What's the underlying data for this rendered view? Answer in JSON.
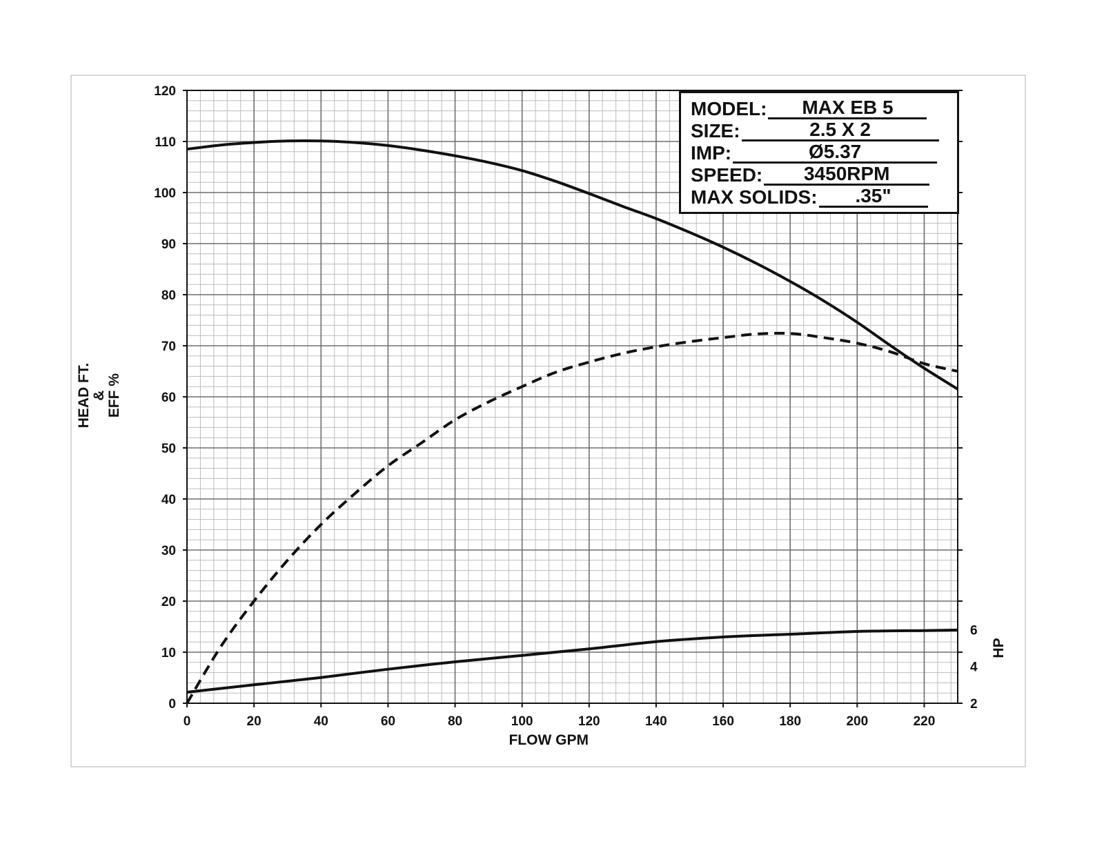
{
  "spec": {
    "rows": [
      {
        "key": "MODEL:",
        "value": "MAX EB 5"
      },
      {
        "key": "SIZE:",
        "value": "2.5 X 2"
      },
      {
        "key": "IMP:",
        "value": "Ø5.37"
      },
      {
        "key": "SPEED:",
        "value": "3450RPM"
      },
      {
        "key": "MAX SOLIDS:",
        "value": ".35\""
      }
    ]
  },
  "chart_data": {
    "type": "line",
    "title": "",
    "xlabel": "FLOW GPM",
    "ylabel": "HEAD FT. & EFF %",
    "ylabel_lines": [
      "HEAD FT.",
      "&",
      "EFF %"
    ],
    "y2label": "HP",
    "xlim": [
      0,
      230
    ],
    "ylim": [
      0,
      120
    ],
    "y2lim": [
      2,
      35.3
    ],
    "x_ticks": [
      0,
      20,
      40,
      60,
      80,
      100,
      120,
      140,
      160,
      180,
      200,
      220
    ],
    "y_ticks": [
      0,
      10,
      20,
      30,
      40,
      50,
      60,
      70,
      80,
      90,
      100,
      110,
      120
    ],
    "y2_ticks": [
      2,
      4,
      6
    ],
    "grid": true,
    "series": [
      {
        "style": "solid",
        "axis": "left",
        "x": [
          0,
          10,
          20,
          30,
          40,
          50,
          60,
          70,
          80,
          90,
          100,
          110,
          120,
          130,
          140,
          150,
          160,
          170,
          180,
          190,
          200,
          210,
          220,
          230
        ],
        "y": [
          108.5,
          109.3,
          109.8,
          110.1,
          110.1,
          109.8,
          109.2,
          108.3,
          107.2,
          105.9,
          104.3,
          102.2,
          99.8,
          97.3,
          94.9,
          92.2,
          89.3,
          86.1,
          82.6,
          78.8,
          74.6,
          70.0,
          65.6,
          61.5
        ],
        "color": "#111111"
      },
      {
        "style": "dashed",
        "axis": "left",
        "x": [
          0,
          10,
          20,
          30,
          40,
          50,
          60,
          70,
          80,
          90,
          100,
          110,
          120,
          130,
          140,
          150,
          160,
          170,
          180,
          190,
          200,
          210,
          220,
          230
        ],
        "y": [
          0,
          11.0,
          20.0,
          28.0,
          35.0,
          41.0,
          46.5,
          51.0,
          55.5,
          59.0,
          62.0,
          64.8,
          66.8,
          68.5,
          69.8,
          70.8,
          71.6,
          72.3,
          72.4,
          71.6,
          70.5,
          68.8,
          66.5,
          65.0
        ],
        "color": "#111111"
      },
      {
        "style": "solid",
        "axis": "right",
        "x": [
          0,
          20,
          40,
          60,
          80,
          100,
          120,
          140,
          160,
          180,
          200,
          220,
          230
        ],
        "y": [
          2.6,
          3.0,
          3.4,
          3.85,
          4.25,
          4.6,
          4.95,
          5.35,
          5.6,
          5.75,
          5.9,
          5.95,
          5.98
        ],
        "color": "#111111"
      }
    ]
  }
}
